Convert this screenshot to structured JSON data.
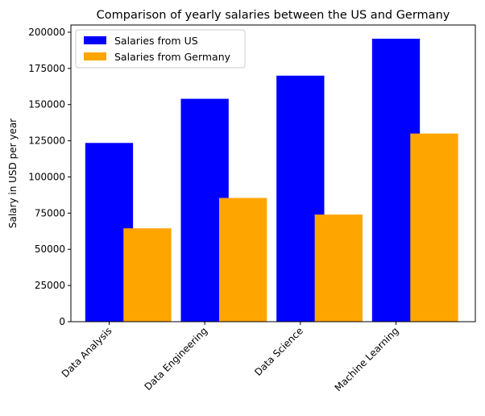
{
  "chart_data": {
    "type": "bar",
    "title": "Comparison of yearly salaries between the US and Germany",
    "xlabel": "",
    "ylabel": "Salary in USD per year",
    "categories": [
      "Data Analysis",
      "Data Engineering",
      "Data Science",
      "Machine Learning"
    ],
    "series": [
      {
        "name": "Salaries from US",
        "color": "#0000ff",
        "values": [
          123500,
          154000,
          170000,
          195500
        ]
      },
      {
        "name": "Salaries from Germany",
        "color": "#ffa500",
        "values": [
          64500,
          85500,
          74000,
          130000
        ]
      }
    ],
    "ylim": [
      0,
      205000
    ],
    "yticks": [
      0,
      25000,
      50000,
      75000,
      100000,
      125000,
      150000,
      175000,
      200000
    ],
    "grid": false,
    "legend_position": "top-left"
  }
}
